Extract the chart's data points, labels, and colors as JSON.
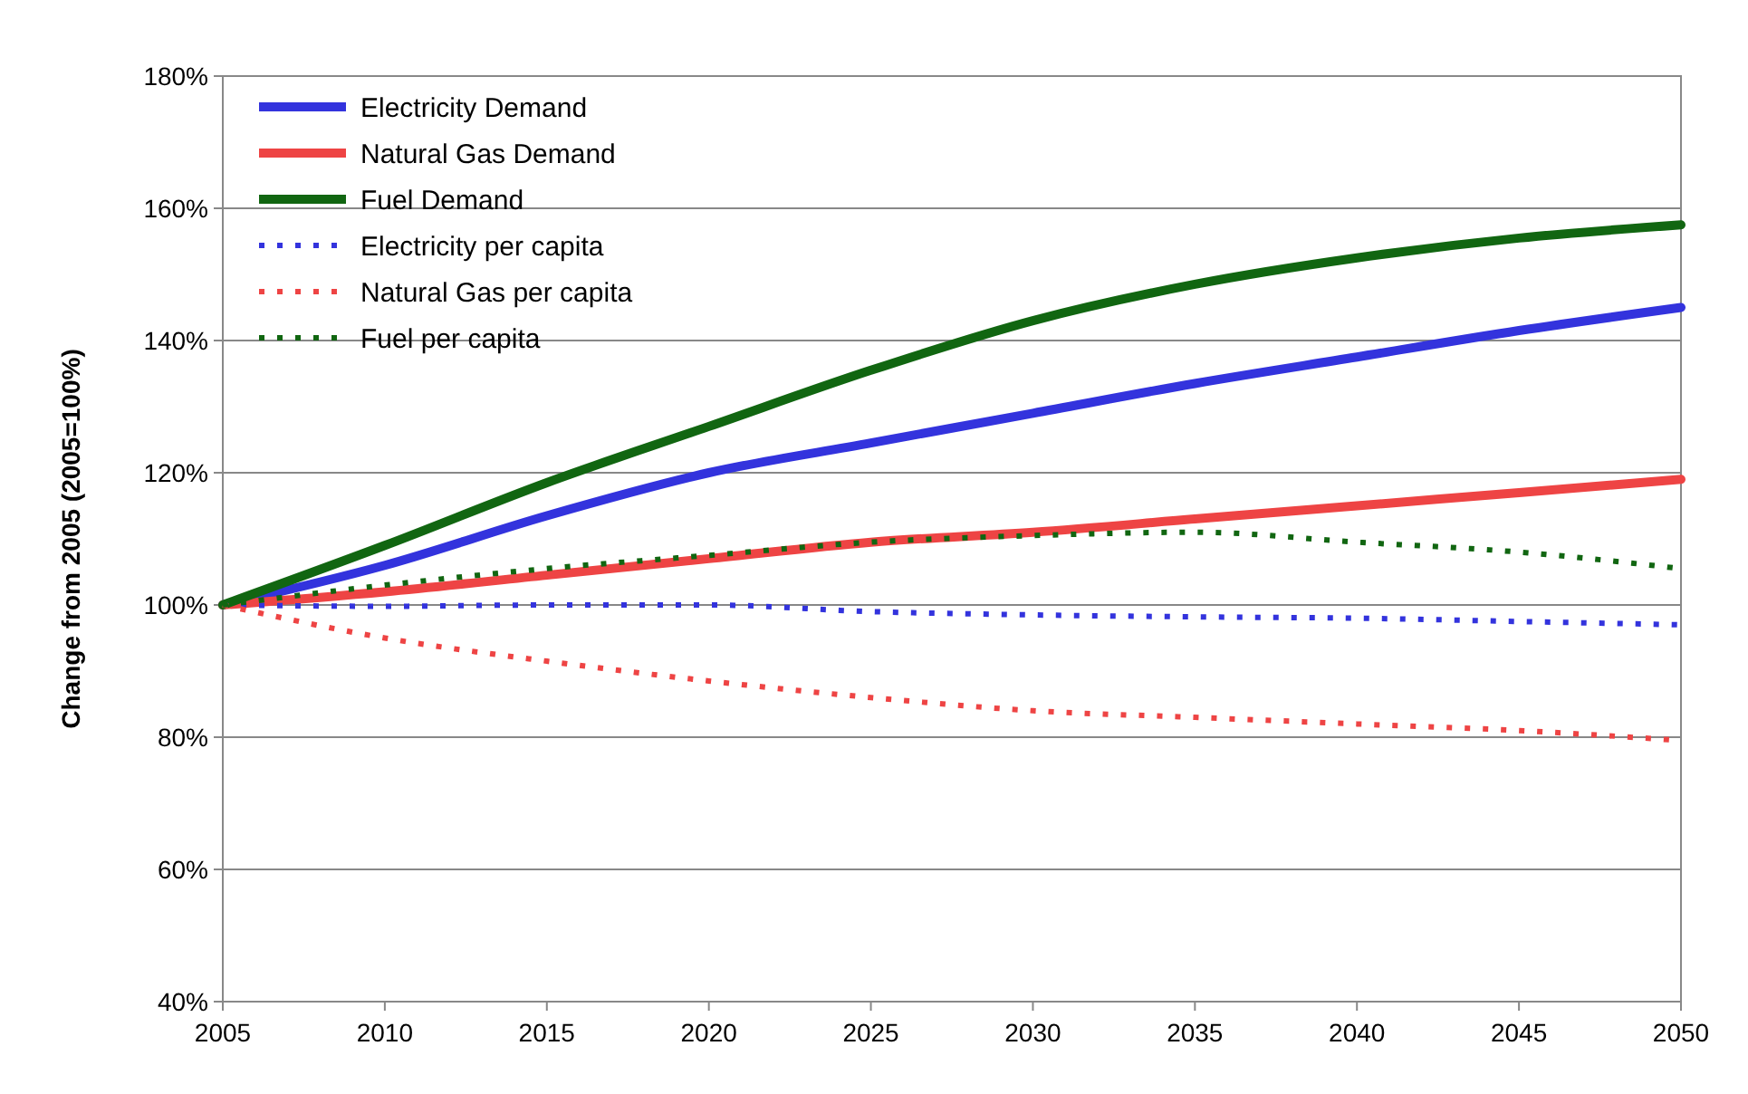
{
  "chart_data": {
    "type": "line",
    "ylabel": "Change from 2005 (2005=100%)",
    "x": [
      2005,
      2010,
      2015,
      2020,
      2025,
      2030,
      2035,
      2040,
      2045,
      2050
    ],
    "xlim": [
      2005,
      2050
    ],
    "xticks": [
      2005,
      2010,
      2015,
      2020,
      2025,
      2030,
      2035,
      2040,
      2045,
      2050
    ],
    "ylim": [
      40,
      180
    ],
    "yticks": [
      {
        "value": 40,
        "label": "40%"
      },
      {
        "value": 60,
        "label": "60%"
      },
      {
        "value": 80,
        "label": "80%"
      },
      {
        "value": 100,
        "label": "100%"
      },
      {
        "value": 120,
        "label": "120%"
      },
      {
        "value": 140,
        "label": "140%"
      },
      {
        "value": 160,
        "label": "160%"
      },
      {
        "value": 180,
        "label": "180%"
      }
    ],
    "grid": "y",
    "legend": "top left",
    "marker": "none",
    "series": [
      {
        "name": "Electricity Demand",
        "color": "#3333dd",
        "line_style": "solid",
        "values": [
          100,
          106,
          113.5,
          120,
          124.5,
          129,
          133.5,
          137.5,
          141.5,
          145
        ]
      },
      {
        "name": "Natural Gas Demand",
        "color": "#ee4444",
        "line_style": "solid",
        "values": [
          100,
          102,
          104.5,
          107,
          109.5,
          111,
          113,
          115,
          117,
          119
        ]
      },
      {
        "name": "Fuel Demand",
        "color": "#116611",
        "line_style": "solid",
        "values": [
          100,
          109,
          118.5,
          127,
          135.5,
          143,
          148.5,
          152.5,
          155.5,
          157.5
        ]
      },
      {
        "name": "Electricity per capita",
        "color": "#3333dd",
        "line_style": "dotted",
        "values": [
          100,
          99.8,
          100,
          100,
          99,
          98.5,
          98.2,
          98,
          97.5,
          97
        ]
      },
      {
        "name": "Natural Gas per capita",
        "color": "#ee4444",
        "line_style": "dotted",
        "values": [
          100,
          95,
          91.5,
          88.5,
          86,
          84,
          83,
          82,
          81,
          79.5
        ]
      },
      {
        "name": "Fuel per capita",
        "color": "#116611",
        "line_style": "dotted",
        "values": [
          100,
          103,
          105.5,
          107.5,
          109.5,
          110.5,
          111,
          109.5,
          108,
          105.5
        ]
      }
    ]
  }
}
